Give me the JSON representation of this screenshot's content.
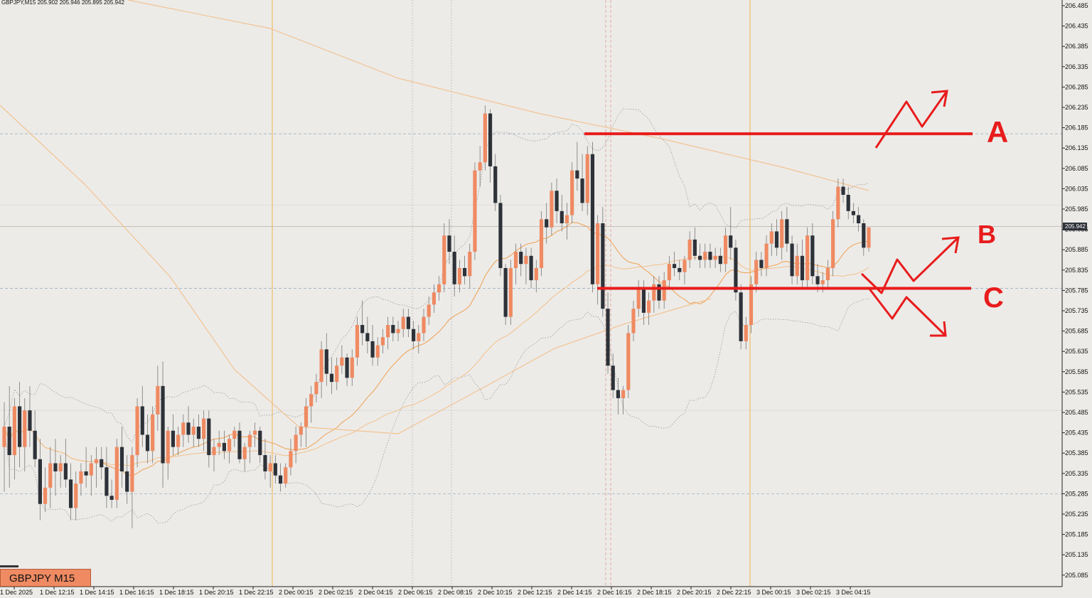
{
  "header": {
    "symbol": "GBPJPY,M15",
    "ohlc": "205.902 205.946 205.895 205.942"
  },
  "badge": {
    "label": "GBPJPY M15"
  },
  "price_label": "205.942",
  "colors": {
    "background": "#ecebe8",
    "bull": "#ef8a62",
    "bear": "#2d3138",
    "ma": "#f0a050",
    "bands": "#9a9a9a",
    "annotation": "#e81c1c",
    "vline": "#f0b050"
  },
  "chart_data": {
    "type": "candlestick",
    "y_axis": {
      "ticks": [
        "206.485",
        "206.435",
        "206.385",
        "206.335",
        "206.285",
        "206.235",
        "206.185",
        "206.135",
        "206.085",
        "206.035",
        "205.985",
        "205.935",
        "205.885",
        "205.835",
        "205.785",
        "205.735",
        "205.685",
        "205.635",
        "205.585",
        "205.535",
        "205.485",
        "205.435",
        "205.385",
        "205.335",
        "205.285",
        "205.235",
        "205.185",
        "205.135",
        "205.085"
      ],
      "range": [
        205.07,
        206.5
      ]
    },
    "x_axis": {
      "ticks": [
        "1 Dec 2025",
        "1 Dec 12:15",
        "1 Dec 14:15",
        "1 Dec 16:15",
        "1 Dec 18:15",
        "1 Dec 20:15",
        "1 Dec 22:15",
        "2 Dec 00:15",
        "2 Dec 02:15",
        "2 Dec 04:15",
        "2 Dec 06:15",
        "2 Dec 08:15",
        "2 Dec 10:15",
        "2 Dec 12:15",
        "2 Dec 14:15",
        "2 Dec 16:15",
        "2 Dec 18:15",
        "2 Dec 20:15",
        "2 Dec 22:15",
        "3 Dec 00:15",
        "3 Dec 02:15",
        "3 Dec 04:15"
      ]
    },
    "last_price": 205.942,
    "levels": [
      {
        "label": "A",
        "price": 206.17
      },
      {
        "label": "B",
        "price": 205.79
      },
      {
        "label": "C",
        "price": 205.79
      }
    ],
    "candles": [
      [
        205.4,
        205.51,
        205.29,
        205.45
      ],
      [
        205.45,
        205.55,
        205.3,
        205.38
      ],
      [
        205.38,
        205.52,
        205.32,
        205.5
      ],
      [
        205.5,
        205.56,
        205.35,
        205.4
      ],
      [
        205.4,
        205.52,
        205.34,
        205.49
      ],
      [
        205.49,
        205.55,
        205.4,
        205.44
      ],
      [
        205.44,
        205.49,
        205.35,
        205.37
      ],
      [
        205.37,
        205.42,
        205.22,
        205.26
      ],
      [
        205.26,
        205.35,
        205.24,
        205.3
      ],
      [
        205.3,
        205.4,
        205.25,
        205.36
      ],
      [
        205.36,
        205.42,
        205.28,
        205.34
      ],
      [
        205.34,
        205.38,
        205.3,
        205.36
      ],
      [
        205.36,
        205.42,
        205.3,
        205.32
      ],
      [
        205.32,
        205.36,
        205.22,
        205.25
      ],
      [
        205.25,
        205.34,
        205.22,
        205.31
      ],
      [
        205.31,
        205.36,
        205.28,
        205.34
      ],
      [
        205.34,
        205.4,
        205.3,
        205.33
      ],
      [
        205.33,
        205.38,
        205.28,
        205.36
      ],
      [
        205.36,
        205.4,
        205.3,
        205.37
      ],
      [
        205.37,
        205.4,
        205.32,
        205.35
      ],
      [
        205.35,
        205.4,
        205.25,
        205.28
      ],
      [
        205.28,
        205.32,
        205.25,
        205.27
      ],
      [
        205.27,
        205.42,
        205.25,
        205.4
      ],
      [
        205.4,
        205.45,
        205.3,
        205.34
      ],
      [
        205.34,
        205.38,
        205.26,
        205.29
      ],
      [
        205.29,
        205.4,
        205.2,
        205.38
      ],
      [
        205.38,
        205.52,
        205.35,
        205.5
      ],
      [
        205.5,
        205.55,
        205.4,
        205.43
      ],
      [
        205.43,
        205.48,
        205.36,
        205.39
      ],
      [
        205.39,
        205.5,
        205.36,
        205.48
      ],
      [
        205.48,
        205.6,
        205.44,
        205.55
      ],
      [
        205.55,
        205.61,
        205.3,
        205.36
      ],
      [
        205.36,
        205.45,
        205.32,
        205.44
      ],
      [
        205.44,
        205.48,
        205.38,
        205.4
      ],
      [
        205.4,
        205.45,
        205.38,
        205.43
      ],
      [
        205.43,
        205.48,
        205.4,
        205.46
      ],
      [
        205.46,
        205.5,
        205.41,
        205.43
      ],
      [
        205.43,
        205.47,
        205.4,
        205.45
      ],
      [
        205.45,
        205.48,
        205.4,
        205.42
      ],
      [
        205.42,
        205.49,
        205.39,
        205.47
      ],
      [
        205.47,
        205.49,
        205.35,
        205.38
      ],
      [
        205.38,
        205.42,
        205.34,
        205.4
      ],
      [
        205.4,
        205.44,
        205.38,
        205.41
      ],
      [
        205.41,
        205.44,
        205.37,
        205.39
      ],
      [
        205.39,
        205.43,
        205.36,
        205.42
      ],
      [
        205.42,
        205.45,
        205.4,
        205.44
      ],
      [
        205.44,
        205.46,
        205.36,
        205.37
      ],
      [
        205.37,
        205.41,
        205.34,
        205.4
      ],
      [
        205.4,
        205.44,
        205.36,
        205.43
      ],
      [
        205.43,
        205.46,
        205.4,
        205.44
      ],
      [
        205.44,
        205.45,
        205.36,
        205.38
      ],
      [
        205.38,
        205.42,
        205.32,
        205.34
      ],
      [
        205.34,
        205.38,
        205.3,
        205.36
      ],
      [
        205.36,
        205.38,
        205.31,
        205.33
      ],
      [
        205.33,
        205.36,
        205.29,
        205.31
      ],
      [
        205.31,
        205.36,
        205.3,
        205.35
      ],
      [
        205.35,
        205.42,
        205.33,
        205.39
      ],
      [
        205.39,
        205.45,
        205.36,
        205.43
      ],
      [
        205.43,
        205.46,
        205.4,
        205.45
      ],
      [
        205.45,
        205.52,
        205.4,
        205.5
      ],
      [
        205.5,
        205.55,
        205.46,
        205.53
      ],
      [
        205.53,
        205.58,
        205.51,
        205.56
      ],
      [
        205.56,
        205.66,
        205.52,
        205.64
      ],
      [
        205.64,
        205.68,
        205.55,
        205.58
      ],
      [
        205.58,
        205.62,
        205.53,
        205.56
      ],
      [
        205.56,
        205.62,
        205.54,
        205.6
      ],
      [
        205.6,
        205.65,
        205.58,
        205.62
      ],
      [
        205.62,
        205.63,
        205.55,
        205.57
      ],
      [
        205.57,
        205.64,
        205.55,
        205.62
      ],
      [
        205.62,
        205.72,
        205.6,
        205.7
      ],
      [
        205.7,
        205.76,
        205.65,
        205.68
      ],
      [
        205.68,
        205.72,
        205.63,
        205.66
      ],
      [
        205.66,
        205.7,
        205.6,
        205.62
      ],
      [
        205.62,
        205.67,
        205.6,
        205.65
      ],
      [
        205.65,
        205.69,
        205.63,
        205.67
      ],
      [
        205.67,
        205.72,
        205.64,
        205.7
      ],
      [
        205.7,
        205.72,
        205.66,
        205.68
      ],
      [
        205.68,
        205.71,
        205.66,
        205.69
      ],
      [
        205.69,
        205.74,
        205.67,
        205.72
      ],
      [
        205.72,
        205.74,
        205.67,
        205.69
      ],
      [
        205.69,
        205.71,
        205.64,
        205.66
      ],
      [
        205.66,
        205.7,
        205.63,
        205.68
      ],
      [
        205.68,
        205.74,
        205.66,
        205.72
      ],
      [
        205.72,
        205.77,
        205.7,
        205.75
      ],
      [
        205.75,
        205.8,
        205.73,
        205.78
      ],
      [
        205.78,
        205.82,
        205.76,
        205.8
      ],
      [
        205.8,
        205.95,
        205.78,
        205.92
      ],
      [
        205.92,
        205.96,
        205.85,
        205.88
      ],
      [
        205.88,
        205.92,
        205.77,
        205.8
      ],
      [
        205.8,
        205.86,
        205.78,
        205.84
      ],
      [
        205.84,
        205.87,
        205.8,
        205.82
      ],
      [
        205.82,
        205.9,
        205.79,
        205.88
      ],
      [
        205.88,
        206.1,
        205.86,
        206.08
      ],
      [
        206.08,
        206.14,
        206.04,
        206.1
      ],
      [
        206.1,
        206.24,
        206.08,
        206.22
      ],
      [
        206.22,
        206.23,
        206.05,
        206.09
      ],
      [
        206.09,
        206.12,
        205.98,
        206.0
      ],
      [
        206.0,
        206.02,
        205.82,
        205.84
      ],
      [
        205.84,
        205.85,
        205.7,
        205.72
      ],
      [
        205.72,
        205.86,
        205.7,
        205.84
      ],
      [
        205.84,
        205.9,
        205.8,
        205.88
      ],
      [
        205.88,
        205.9,
        205.82,
        205.85
      ],
      [
        205.85,
        205.89,
        205.8,
        205.87
      ],
      [
        205.87,
        205.89,
        205.79,
        205.81
      ],
      [
        205.81,
        205.86,
        205.78,
        205.84
      ],
      [
        205.84,
        205.98,
        205.82,
        205.96
      ],
      [
        205.96,
        206.0,
        205.9,
        205.94
      ],
      [
        205.94,
        206.05,
        205.92,
        206.03
      ],
      [
        206.03,
        206.06,
        205.95,
        205.98
      ],
      [
        205.98,
        206.02,
        205.93,
        205.95
      ],
      [
        205.95,
        206.0,
        205.91,
        205.97
      ],
      [
        205.97,
        206.1,
        205.95,
        206.08
      ],
      [
        206.08,
        206.15,
        206.03,
        206.06
      ],
      [
        206.06,
        206.12,
        205.98,
        206.0
      ],
      [
        206.0,
        206.14,
        205.97,
        206.12
      ],
      [
        206.12,
        206.15,
        205.78,
        205.8
      ],
      [
        205.8,
        205.97,
        205.75,
        205.95
      ],
      [
        205.95,
        205.99,
        205.72,
        205.74
      ],
      [
        205.74,
        205.78,
        205.58,
        205.6
      ],
      [
        205.6,
        205.63,
        205.52,
        205.54
      ],
      [
        205.54,
        205.57,
        205.48,
        205.52
      ],
      [
        205.52,
        205.55,
        205.48,
        205.54
      ],
      [
        205.54,
        205.7,
        205.52,
        205.68
      ],
      [
        205.68,
        205.76,
        205.66,
        205.74
      ],
      [
        205.74,
        205.81,
        205.72,
        205.79
      ],
      [
        205.79,
        205.81,
        205.7,
        205.73
      ],
      [
        205.73,
        205.78,
        205.7,
        205.76
      ],
      [
        205.76,
        205.82,
        205.73,
        205.8
      ],
      [
        205.8,
        205.82,
        205.74,
        205.76
      ],
      [
        205.76,
        205.83,
        205.74,
        205.81
      ],
      [
        205.81,
        205.87,
        205.79,
        205.85
      ],
      [
        205.85,
        205.88,
        205.82,
        205.84
      ],
      [
        205.84,
        205.86,
        205.81,
        205.83
      ],
      [
        205.83,
        205.87,
        205.8,
        205.86
      ],
      [
        205.86,
        205.93,
        205.84,
        205.91
      ],
      [
        205.91,
        205.94,
        205.86,
        205.87
      ],
      [
        205.87,
        205.9,
        205.84,
        205.86
      ],
      [
        205.86,
        205.9,
        205.84,
        205.88
      ],
      [
        205.88,
        205.9,
        205.84,
        205.86
      ],
      [
        205.86,
        205.89,
        205.84,
        205.87
      ],
      [
        205.87,
        205.89,
        205.83,
        205.85
      ],
      [
        205.85,
        205.94,
        205.83,
        205.92
      ],
      [
        205.92,
        205.99,
        205.86,
        205.89
      ],
      [
        205.89,
        205.91,
        205.76,
        205.78
      ],
      [
        205.78,
        205.8,
        205.64,
        205.66
      ],
      [
        205.66,
        205.72,
        205.64,
        205.7
      ],
      [
        205.7,
        205.82,
        205.68,
        205.8
      ],
      [
        205.8,
        205.88,
        205.78,
        205.86
      ],
      [
        205.86,
        205.88,
        205.82,
        205.84
      ],
      [
        205.84,
        205.92,
        205.82,
        205.9
      ],
      [
        205.9,
        205.95,
        205.87,
        205.93
      ],
      [
        205.93,
        205.96,
        205.87,
        205.89
      ],
      [
        205.89,
        205.98,
        205.86,
        205.96
      ],
      [
        205.96,
        205.99,
        205.88,
        205.9
      ],
      [
        205.9,
        205.92,
        205.8,
        205.82
      ],
      [
        205.82,
        205.9,
        205.8,
        205.87
      ],
      [
        205.87,
        205.91,
        205.79,
        205.81
      ],
      [
        205.81,
        205.94,
        205.79,
        205.92
      ],
      [
        205.92,
        205.95,
        205.8,
        205.82
      ],
      [
        205.82,
        205.85,
        205.78,
        205.8
      ],
      [
        205.8,
        205.83,
        205.78,
        205.81
      ],
      [
        205.81,
        205.86,
        205.79,
        205.84
      ],
      [
        205.84,
        205.98,
        205.82,
        205.96
      ],
      [
        205.96,
        206.06,
        205.94,
        206.04
      ],
      [
        206.04,
        206.06,
        206.0,
        206.02
      ],
      [
        206.02,
        206.04,
        205.96,
        205.98
      ],
      [
        205.98,
        206.0,
        205.95,
        205.97
      ],
      [
        205.97,
        205.99,
        205.93,
        205.95
      ],
      [
        205.95,
        205.96,
        205.87,
        205.89
      ],
      [
        205.89,
        205.94,
        205.88,
        205.94
      ]
    ],
    "annotations": [
      "A",
      "B",
      "C"
    ]
  }
}
